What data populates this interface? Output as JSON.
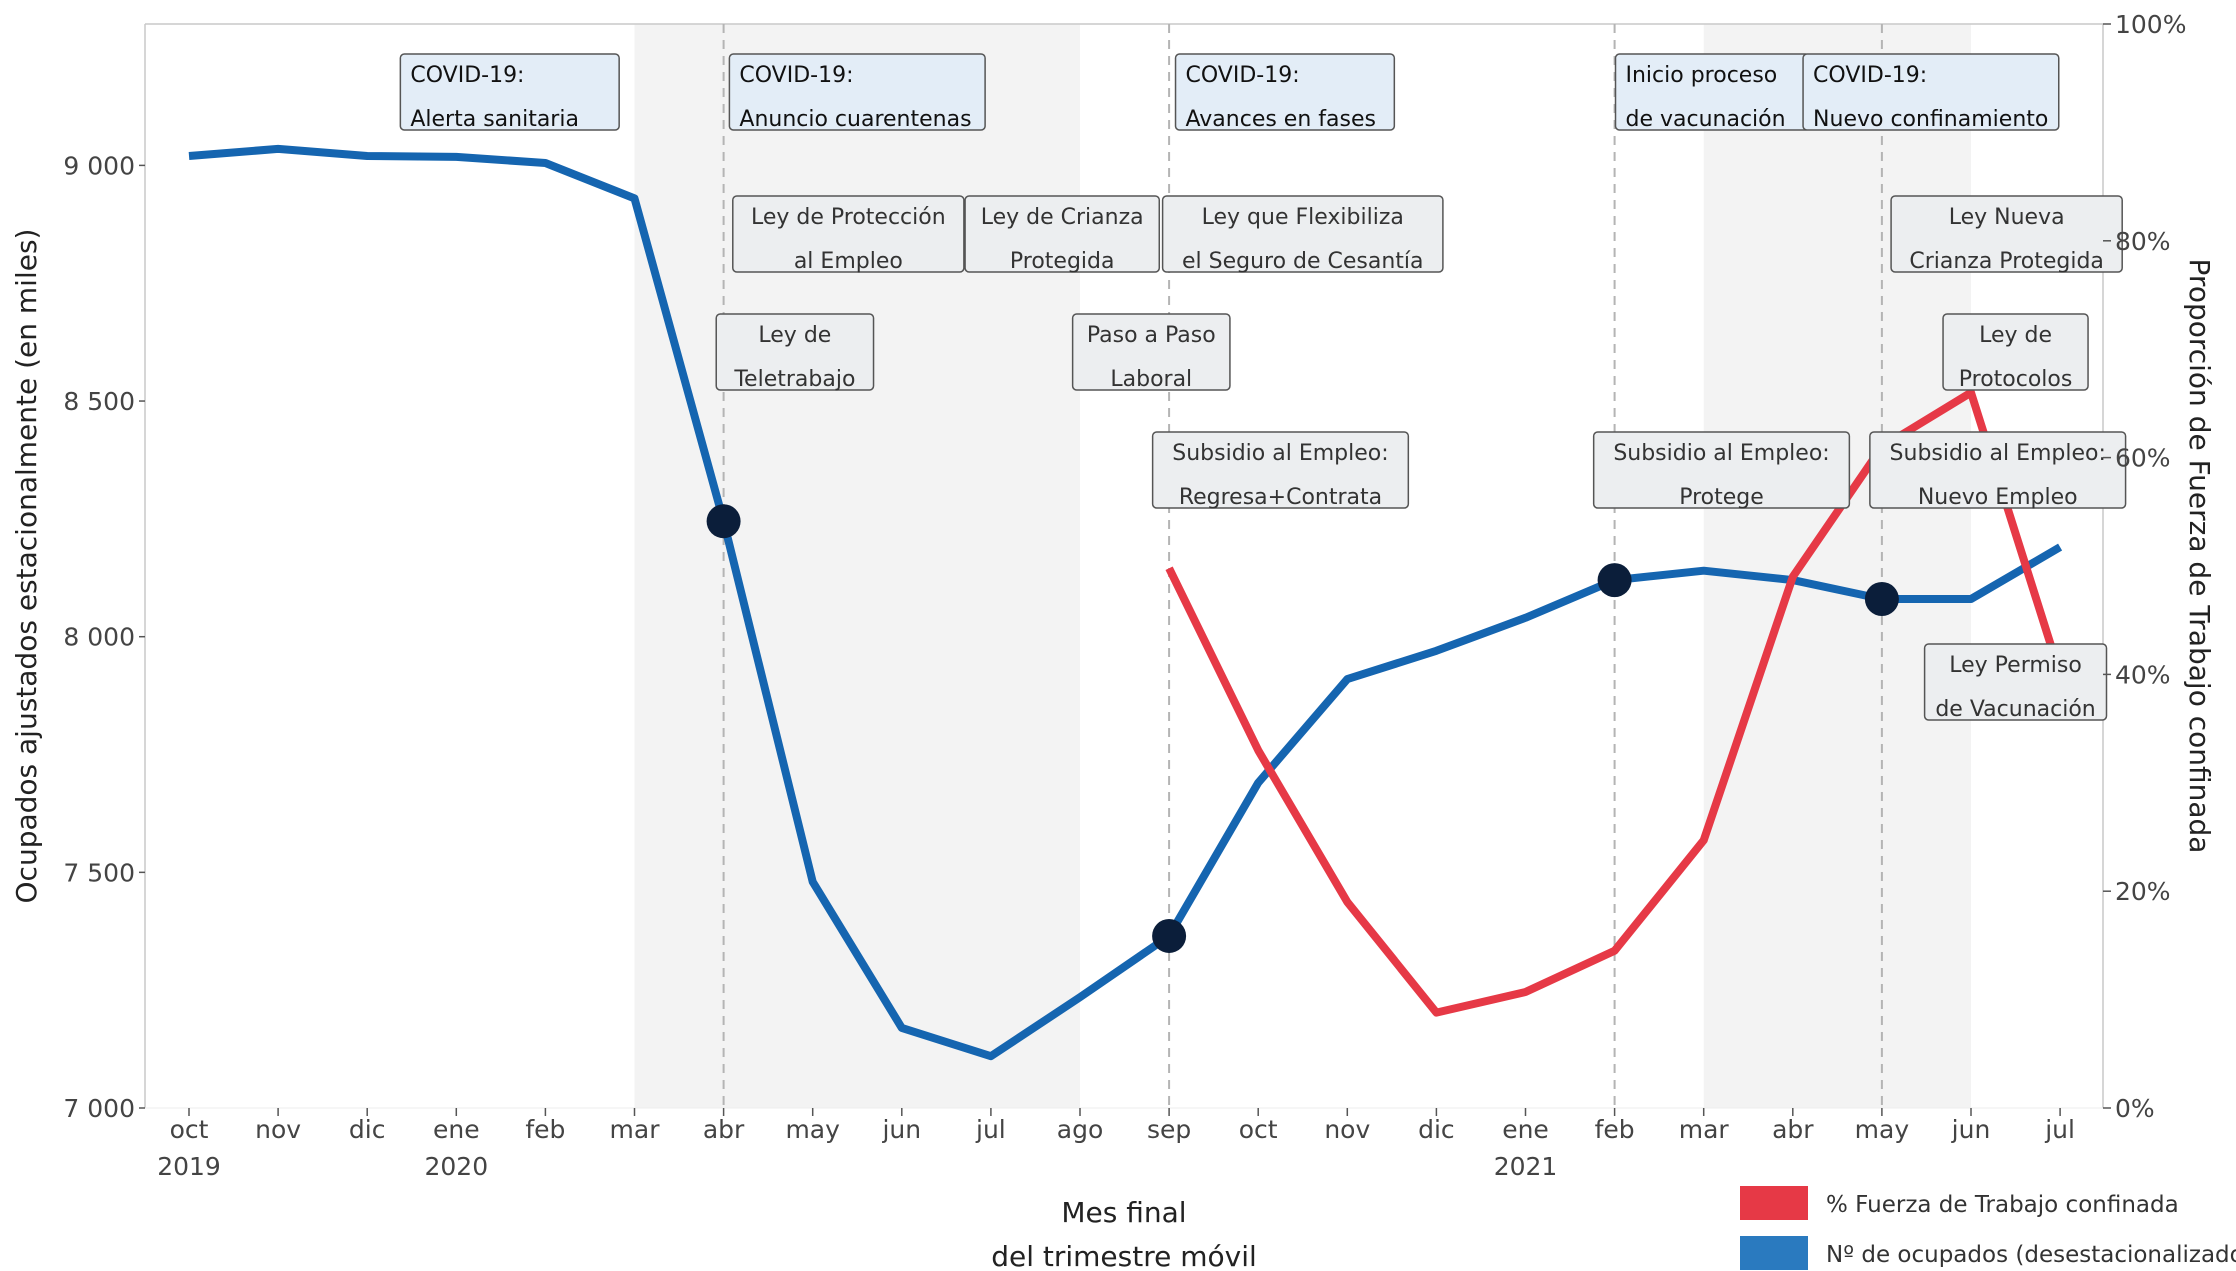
{
  "chart_data": {
    "type": "line",
    "xlabel": [
      "Mes final",
      "del trimestre móvil"
    ],
    "ylabel_left": "Ocupados ajustados estacionalmente (en miles)",
    "ylabel_right": "Proporción de Fuerza de Trabajo confinada",
    "x_categories": [
      "oct",
      "nov",
      "dic",
      "ene",
      "feb",
      "mar",
      "abr",
      "may",
      "jun",
      "jul",
      "ago",
      "sep",
      "oct",
      "nov",
      "dic",
      "ene",
      "feb",
      "mar",
      "abr",
      "may",
      "jun",
      "jul"
    ],
    "year_labels": [
      {
        "index": 0,
        "label": "2019"
      },
      {
        "index": 3,
        "label": "2020"
      },
      {
        "index": 15,
        "label": "2021"
      }
    ],
    "ylim_left": [
      7000,
      9300
    ],
    "yticks_left": [
      7000,
      7500,
      8000,
      8500,
      9000
    ],
    "ytick_labels_left": [
      "7 000",
      "7 500",
      "8 000",
      "8 500",
      "9 000"
    ],
    "ylim_right": [
      0,
      100
    ],
    "yticks_right": [
      0,
      20,
      40,
      60,
      80,
      100
    ],
    "ytick_labels_right": [
      "0%",
      "20%",
      "40%",
      "60%",
      "80%",
      "100%"
    ],
    "shaded_periods": [
      [
        5,
        10
      ],
      [
        17,
        20
      ]
    ],
    "event_lines": [
      6,
      11,
      16,
      19
    ],
    "series": [
      {
        "name": "Nº de ocupados (desestacionalizados)",
        "axis": "left",
        "color": "#1565b0",
        "values": [
          9020,
          9035,
          9020,
          9018,
          9005,
          8930,
          8245,
          7480,
          7170,
          7110,
          7235,
          7365,
          7690,
          7910,
          7970,
          8040,
          8120,
          8140,
          8120,
          8080,
          8080,
          8190
        ]
      },
      {
        "name": "% Fuerza de Trabajo confinada",
        "axis": "right",
        "color": "#e63946",
        "start_index": 11,
        "values": [
          49.8,
          33,
          19,
          8.8,
          10.7,
          14.5,
          24.7,
          49,
          61,
          66,
          40
        ]
      }
    ],
    "markers": [
      {
        "index": 6,
        "value": 8245
      },
      {
        "index": 11,
        "value": 7365
      },
      {
        "index": 16,
        "value": 8120
      },
      {
        "index": 19,
        "value": 8080
      }
    ],
    "annotations": [
      {
        "lines": [
          "COVID-19:",
          "Alerta sanitaria"
        ],
        "style": "covid",
        "anchor": 3.6,
        "row": 0
      },
      {
        "lines": [
          "COVID-19:",
          "Anuncio cuarentenas"
        ],
        "style": "covid",
        "anchor": 7.5,
        "row": 0
      },
      {
        "lines": [
          "COVID-19:",
          "Avances en fases"
        ],
        "style": "covid",
        "anchor": 12.3,
        "row": 0
      },
      {
        "lines": [
          "Inicio proceso",
          "de vacunación"
        ],
        "style": "covid",
        "anchor": 17.1,
        "row": 0
      },
      {
        "lines": [
          "COVID-19:",
          "Nuevo confinamiento"
        ],
        "style": "covid",
        "anchor": 19.55,
        "row": 0
      },
      {
        "lines": [
          "Ley de Protección",
          "al Empleo"
        ],
        "style": "law",
        "anchor": 7.4,
        "row": 1
      },
      {
        "lines": [
          "Ley de Crianza",
          "Protegida"
        ],
        "style": "law",
        "anchor": 9.8,
        "row": 1
      },
      {
        "lines": [
          "Ley que Flexibiliza",
          "el Seguro de Cesantía"
        ],
        "style": "law",
        "anchor": 12.5,
        "row": 1
      },
      {
        "lines": [
          "Ley Nueva",
          "Crianza Protegida"
        ],
        "style": "law",
        "anchor": 20.4,
        "row": 1
      },
      {
        "lines": [
          "Ley de",
          "Teletrabajo"
        ],
        "style": "law",
        "anchor": 6.8,
        "row": 2
      },
      {
        "lines": [
          "Paso a Paso",
          "Laboral"
        ],
        "style": "law",
        "anchor": 10.8,
        "row": 2
      },
      {
        "lines": [
          "Ley de",
          "Protocolos"
        ],
        "style": "law",
        "anchor": 20.5,
        "row": 2
      },
      {
        "lines": [
          "Subsidio al Empleo:",
          "Regresa+Contrata"
        ],
        "style": "law",
        "anchor": 12.25,
        "row": 3
      },
      {
        "lines": [
          "Subsidio al Empleo:",
          "Protege"
        ],
        "style": "law",
        "anchor": 17.2,
        "row": 3
      },
      {
        "lines": [
          "Subsidio al Empleo:",
          "Nuevo Empleo"
        ],
        "style": "law",
        "anchor": 20.3,
        "row": 3
      },
      {
        "lines": [
          "Ley Permiso",
          "de Vacunación"
        ],
        "style": "law",
        "anchor": 20.5,
        "row": 4
      }
    ],
    "legend": {
      "position": "bottom-right",
      "items": [
        {
          "label": "% Fuerza de Trabajo confinada",
          "color": "#e63946"
        },
        {
          "label": "Nº de ocupados (desestacionalizados)",
          "color": "#2a7abf"
        }
      ]
    },
    "marker_color": "#0b1e3a",
    "shade_color": "#f3f3f3",
    "covid_box_color": "#e3edf7",
    "law_box_color": "#eceef0"
  }
}
